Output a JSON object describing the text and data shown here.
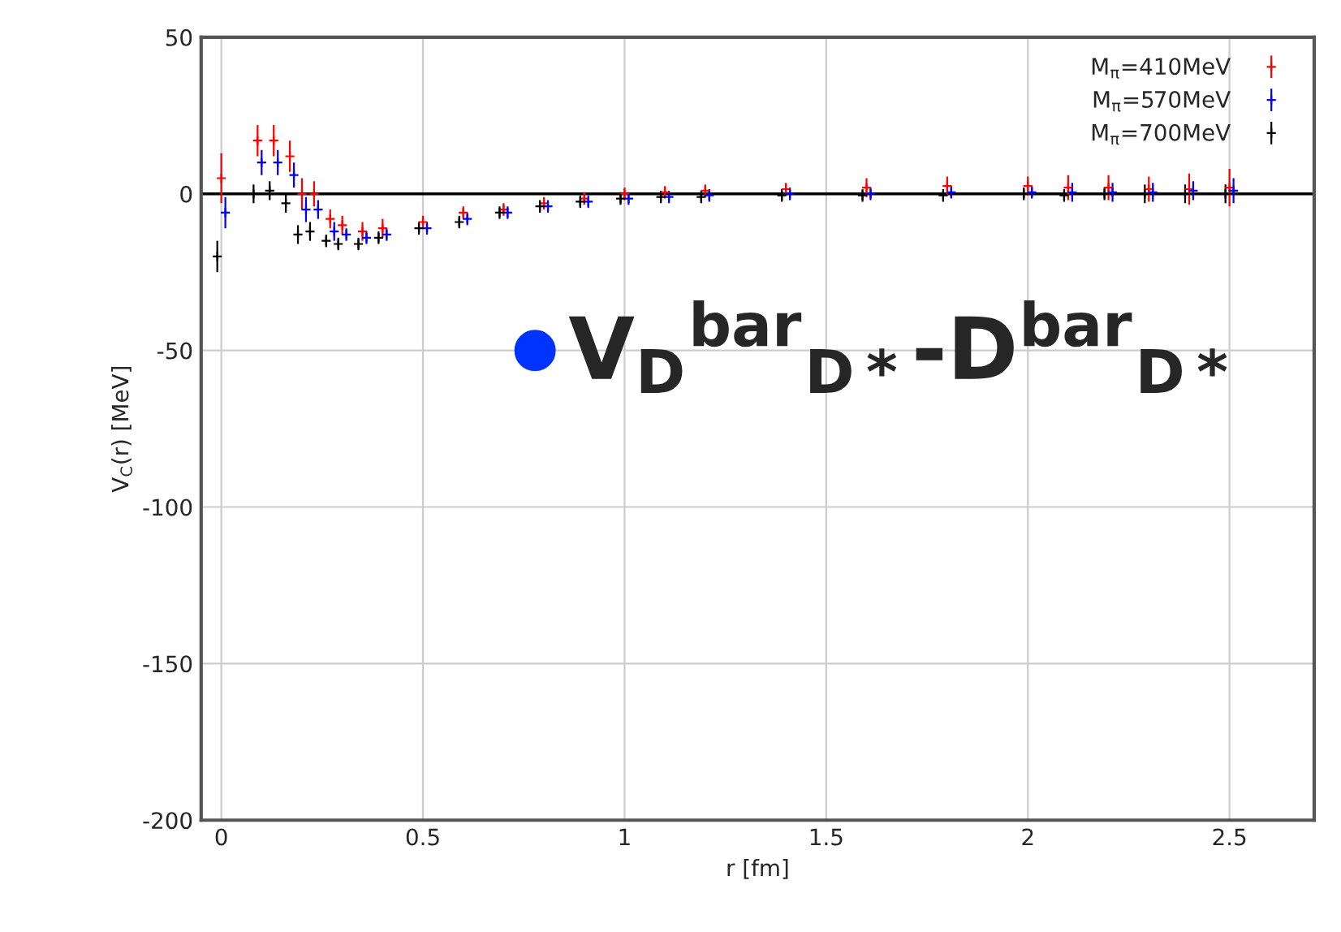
{
  "chart_data": {
    "type": "scatter",
    "xlabel": "r [fm]",
    "ylabel": "V$_{C}$(r) [MeV]",
    "annotations": [
      "V$_{D}$$^{bar}$$_{D*}$-D$^{bar}$$_{D*}$"
    ],
    "x": [
      0,
      0.09,
      0.13,
      0.17,
      0.2,
      0.23,
      0.27,
      0.3,
      0.35,
      0.4,
      0.5,
      0.6,
      0.7,
      0.8,
      0.9,
      1.0,
      1.1,
      1.2,
      1.4,
      1.6,
      1.8,
      2.0,
      2.1,
      2.2,
      2.3,
      2.4,
      2.5
    ],
    "series": [
      {
        "name": "M$_{π}$=410MeV",
        "color": "#ff0000",
        "values": [
          5,
          17,
          17,
          12,
          0,
          0,
          -8,
          -10,
          -12,
          -11,
          -9,
          -6,
          -5,
          -3,
          -1.5,
          0,
          0.5,
          1,
          1.5,
          2,
          2.5,
          2.5,
          2,
          2,
          1.5,
          1.5,
          2
        ],
        "errors": [
          8,
          5,
          5,
          5,
          5,
          4,
          3,
          3,
          3,
          3,
          2,
          2,
          2,
          2,
          2,
          2,
          2,
          2,
          2,
          3,
          3,
          3,
          4,
          4,
          4,
          5,
          6
        ]
      },
      {
        "name": "M$_{π}$=570MeV",
        "color": "#0000ff",
        "x": [
          0.01,
          0.1,
          0.14,
          0.18,
          0.21,
          0.24,
          0.28,
          0.31,
          0.36,
          0.41,
          0.51,
          0.61,
          0.71,
          0.81,
          0.91,
          1.01,
          1.11,
          1.21,
          1.41,
          1.61,
          1.81,
          2.01,
          2.11,
          2.21,
          2.31,
          2.41,
          2.51
        ],
        "values": [
          -6,
          10,
          10,
          6,
          -5,
          -5,
          -12,
          -13,
          -14,
          -13,
          -11,
          -8,
          -6,
          -4,
          -2.5,
          -1.5,
          -1,
          -0.5,
          0,
          0,
          0.5,
          0.5,
          0.5,
          0.5,
          0.5,
          1,
          1
        ],
        "errors": [
          5,
          4,
          4,
          4,
          4,
          3,
          3,
          2,
          2,
          2,
          2,
          2,
          2,
          2,
          2,
          2,
          2,
          2,
          2,
          2,
          2,
          2,
          3,
          3,
          3,
          3,
          4
        ]
      },
      {
        "name": "M$_{π}$=700MeV",
        "color": "#000000",
        "x": [
          -0.01,
          0.08,
          0.12,
          0.16,
          0.19,
          0.22,
          0.26,
          0.29,
          0.34,
          0.39,
          0.49,
          0.59,
          0.69,
          0.79,
          0.89,
          0.99,
          1.09,
          1.19,
          1.39,
          1.59,
          1.79,
          1.99,
          2.09,
          2.19,
          2.29,
          2.39,
          2.49
        ],
        "values": [
          -20,
          0,
          1,
          -3,
          -13,
          -12,
          -15,
          -16,
          -16,
          -14,
          -11,
          -9,
          -6,
          -4,
          -2.5,
          -1.5,
          -1,
          -1,
          -0.5,
          -0.5,
          -0.5,
          0,
          -0.5,
          0,
          0,
          0,
          0
        ],
        "errors": [
          5,
          3,
          3,
          3,
          3,
          3,
          2,
          2,
          2,
          2,
          2,
          2,
          2,
          2,
          2,
          2,
          2,
          2,
          2,
          2,
          2,
          2,
          2,
          2,
          3,
          3,
          3
        ]
      }
    ],
    "xlim": [
      -0.05,
      2.71
    ],
    "xticks": [
      0,
      0.5,
      1,
      1.5,
      2,
      2.5
    ],
    "ylim": [
      -200,
      50
    ],
    "yticks": [
      -200,
      -150,
      -100,
      -50,
      0,
      50
    ],
    "ref_lines": [
      {
        "axis": "y",
        "value": 0,
        "color": "#000000"
      }
    ],
    "grid": true,
    "legend": "top right",
    "marker": "cross"
  }
}
